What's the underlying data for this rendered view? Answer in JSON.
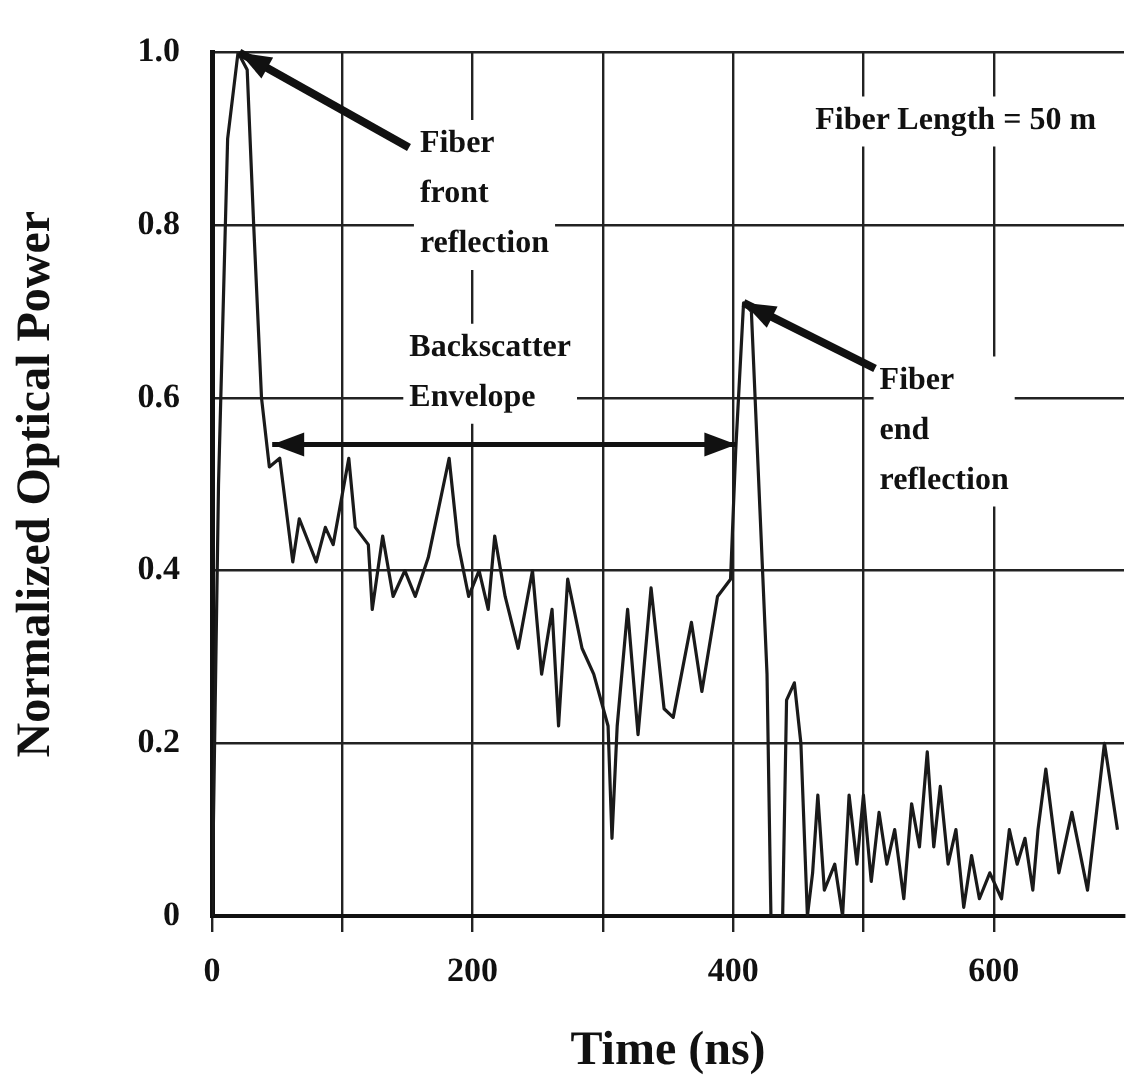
{
  "chart_data": {
    "type": "line",
    "xlabel": "Time (ns)",
    "ylabel": "Normalized Optical Power",
    "xlim": [
      0,
      700
    ],
    "xticks": [
      0,
      {
        "value": 100,
        "label": null
      },
      200,
      {
        "value": 300,
        "label": null
      },
      400,
      {
        "value": 500,
        "label": null
      },
      600
    ],
    "ylim": [
      0,
      1.0
    ],
    "yticks": [
      0,
      0.2,
      0.4,
      0.6,
      0.8,
      {
        "value": 1.0,
        "label": "1.0"
      }
    ],
    "grid": true,
    "legend": false,
    "series": [
      {
        "color": "#1a1a1a",
        "x": [
          0,
          5,
          12,
          20,
          27,
          32,
          38,
          44,
          52,
          62,
          67,
          80,
          87,
          93,
          105,
          110,
          120,
          123,
          131,
          139,
          148,
          156,
          166,
          182,
          189,
          197,
          205,
          212,
          217,
          225,
          235,
          246,
          253,
          261,
          266,
          273,
          284,
          293,
          304,
          307,
          311,
          319,
          327,
          337,
          347,
          354,
          368,
          376,
          388,
          398,
          402,
          408,
          414,
          426,
          429,
          438,
          441,
          447,
          452,
          457,
          461,
          465,
          470,
          478,
          484,
          489,
          495,
          500,
          506,
          512,
          518,
          524,
          531,
          537,
          543,
          549,
          554,
          559,
          565,
          571,
          577,
          583,
          589,
          597,
          606,
          612,
          618,
          624,
          630,
          634,
          640,
          650,
          660,
          672,
          685,
          695
        ],
        "values": [
          0,
          0.5,
          0.9,
          1.0,
          0.98,
          0.8,
          0.6,
          0.52,
          0.53,
          0.41,
          0.46,
          0.41,
          0.45,
          0.43,
          0.53,
          0.45,
          0.43,
          0.355,
          0.44,
          0.37,
          0.4,
          0.37,
          0.415,
          0.53,
          0.43,
          0.37,
          0.4,
          0.355,
          0.44,
          0.37,
          0.31,
          0.4,
          0.28,
          0.355,
          0.22,
          0.39,
          0.31,
          0.28,
          0.22,
          0.09,
          0.22,
          0.355,
          0.21,
          0.38,
          0.24,
          0.23,
          0.34,
          0.26,
          0.37,
          0.39,
          0.54,
          0.71,
          0.7,
          0.28,
          0,
          0,
          0.25,
          0.27,
          0.2,
          0,
          0.05,
          0.14,
          0.03,
          0.06,
          0,
          0.14,
          0.06,
          0.14,
          0.04,
          0.12,
          0.06,
          0.1,
          0.02,
          0.13,
          0.08,
          0.19,
          0.08,
          0.15,
          0.06,
          0.1,
          0.01,
          0.07,
          0.02,
          0.05,
          0.02,
          0.1,
          0.06,
          0.09,
          0.03,
          0.1,
          0.17,
          0.05,
          0.12,
          0.03,
          0.2,
          0.1
        ]
      }
    ],
    "annotations": [
      {
        "text": "Fiber\nfront\nreflection",
        "x": 21,
        "y": 1.0
      },
      "Backscatter\nEnvelope",
      {
        "text": "Fiber\nend\nreflection",
        "x": 408,
        "y": 0.71
      },
      "Fiber Length = 50 m"
    ]
  }
}
